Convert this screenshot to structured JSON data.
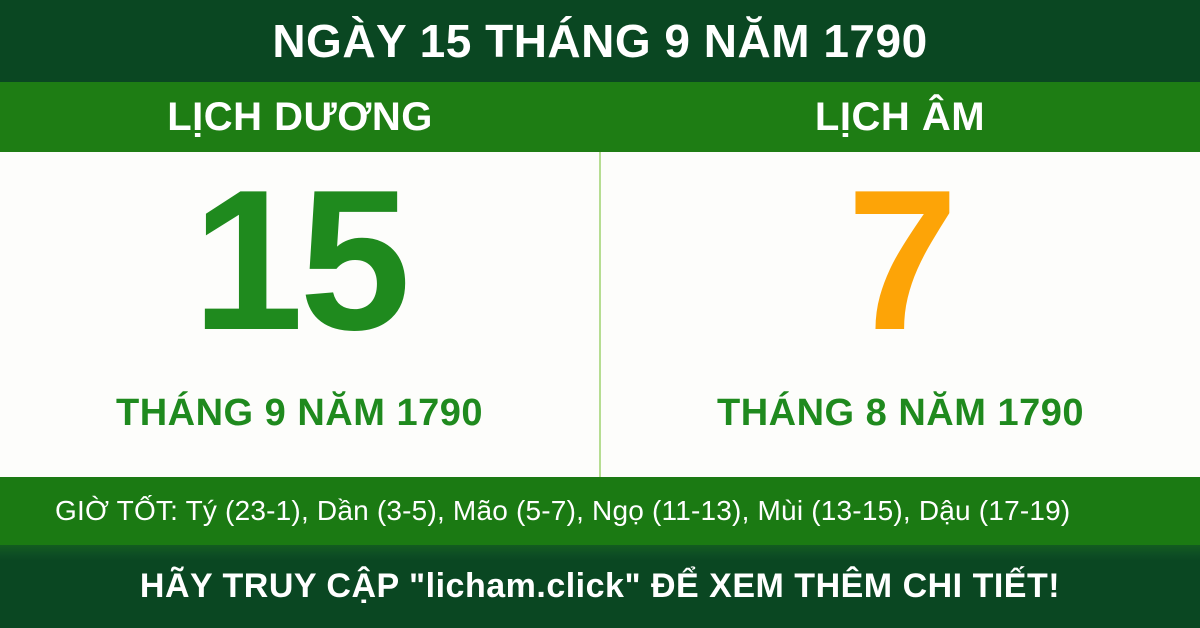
{
  "banner": {
    "title": "NGÀY 15 THÁNG 9 NĂM 1790"
  },
  "solar": {
    "label": "LỊCH DƯƠNG",
    "day": "15",
    "month_year": "THÁNG 9 NĂM 1790"
  },
  "lunar": {
    "label": "LỊCH ÂM",
    "day": "7",
    "month_year": "THÁNG 8 NĂM 1790"
  },
  "good_hours": {
    "label": "GIỜ TỐT:",
    "items": [
      {
        "name": "Tý",
        "range": "23-1"
      },
      {
        "name": "Dần",
        "range": "3-5"
      },
      {
        "name": "Mão",
        "range": "5-7"
      },
      {
        "name": "Ngọ",
        "range": "11-13"
      },
      {
        "name": "Mùi",
        "range": "13-15"
      },
      {
        "name": "Dậu",
        "range": "17-19"
      }
    ]
  },
  "footer": {
    "cta": "HÃY TRUY CẬP \"licham.click\" ĐỂ XEM THÊM CHI TIẾT!",
    "site": "licham.click"
  },
  "colors": {
    "dark_green": "#0a4722",
    "bar_green": "#1e7d14",
    "hours_bar_green": "#1b7a13",
    "solar_day_green": "#1f8a1e",
    "lunar_day_orange": "#fda407",
    "divider_light_green": "#b6dd92",
    "card_white": "#fdfdfb",
    "text_white": "#ffffff"
  }
}
